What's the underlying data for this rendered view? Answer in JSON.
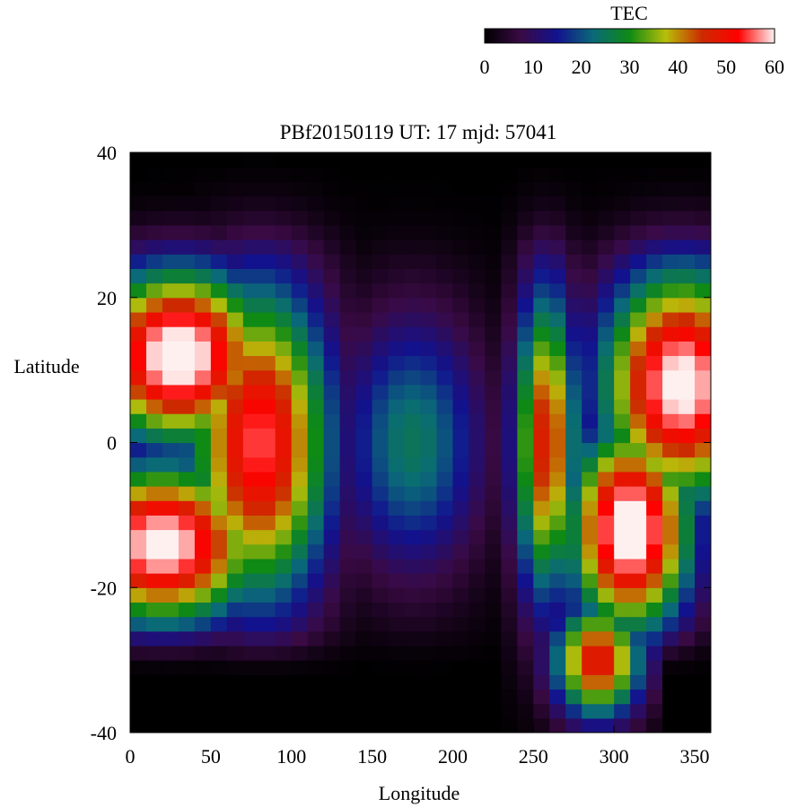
{
  "chart_data": {
    "type": "heatmap",
    "title": "PBf20150119  UT: 17  mjd: 57041",
    "xlabel": "Longitude",
    "ylabel": "Latitude",
    "xlim": [
      0,
      360
    ],
    "ylim": [
      -40,
      40
    ],
    "x_ticks": [
      "0",
      "50",
      "100",
      "150",
      "200",
      "250",
      "300",
      "350"
    ],
    "y_ticks": [
      "40",
      "20",
      "0",
      "-20",
      "-40"
    ],
    "colorbar": {
      "label": "TEC",
      "range": [
        0,
        60
      ],
      "ticks": [
        "0",
        "10",
        "20",
        "30",
        "40",
        "50",
        "60"
      ],
      "colormap": [
        "#000000",
        "#3a0a45",
        "#12128f",
        "#0a6a78",
        "#0f8a14",
        "#b8be0a",
        "#cc2a00",
        "#ff0000",
        "#fff0f0"
      ]
    },
    "grid": false,
    "resolution": {
      "dlon": 10,
      "dlat": 2
    },
    "features": [
      {
        "desc": "crest north-west",
        "lon": 30,
        "lat": 12,
        "peak_tec": 64
      },
      {
        "desc": "crest south-west",
        "lon": 20,
        "lat": -14,
        "peak_tec": 62
      },
      {
        "desc": "crest north-east",
        "lon": 342,
        "lat": 8,
        "peak_tec": 62
      },
      {
        "desc": "crest south-east",
        "lon": 310,
        "lat": -12,
        "peak_tec": 64
      },
      {
        "desc": "secondary max south",
        "lon": 290,
        "lat": -30,
        "peak_tec": 50
      },
      {
        "desc": "trough",
        "lon": 175,
        "lat": 0,
        "peak_tec": 25
      }
    ]
  }
}
